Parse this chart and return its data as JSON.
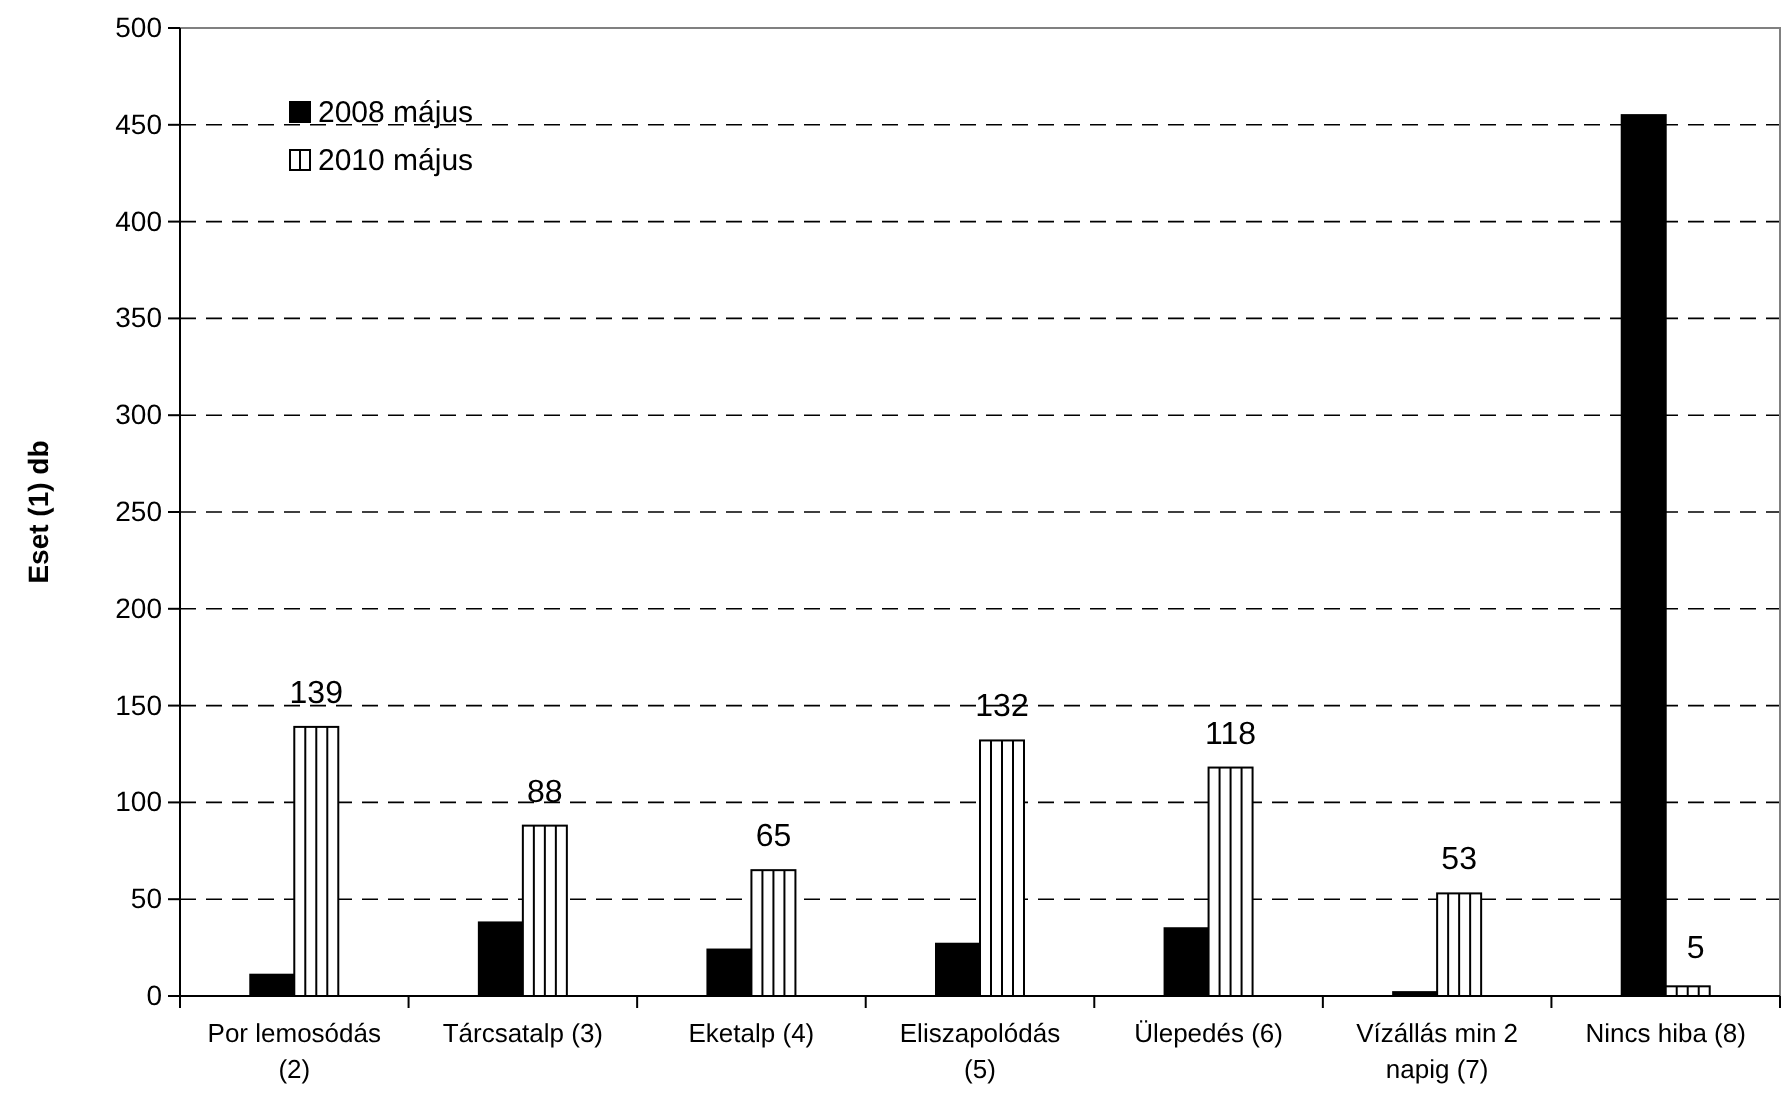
{
  "chart_data": {
    "type": "bar",
    "ylabel": "Eset (1) db",
    "categories": [
      "Por lemosódás (2)",
      "Tárcsatalp (3)",
      "Eketalp  (4)",
      "Eliszapolódás (5)",
      "Ülepedés (6)",
      "Vízállás min 2 napig (7)",
      "Nincs hiba (8)"
    ],
    "series": [
      {
        "name": "2008 május",
        "color": "#000000",
        "values": [
          11,
          38,
          24,
          27,
          35,
          2,
          455
        ]
      },
      {
        "name": "2010 május",
        "color": "#ffffff",
        "values": [
          139,
          88,
          65,
          132,
          118,
          53,
          5
        ],
        "value_labels": [
          "139",
          "88",
          "65",
          "132",
          "118",
          "53",
          "5"
        ]
      }
    ],
    "ylim": [
      0,
      500
    ],
    "yticks": [
      0,
      50,
      100,
      150,
      200,
      250,
      300,
      350,
      400,
      450,
      500
    ],
    "grid": "y",
    "legend": "top left"
  }
}
